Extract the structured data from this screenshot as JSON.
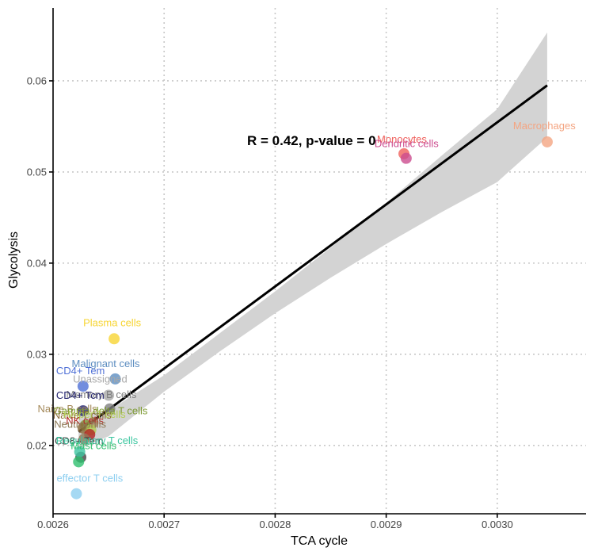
{
  "chart_data": {
    "type": "scatter",
    "xlabel": "TCA cycle",
    "ylabel": "Glycolysis",
    "xlim": [
      0.0026,
      0.00308
    ],
    "ylim": [
      0.0125,
      0.068
    ],
    "x_ticks": [
      0.0026,
      0.0027,
      0.0028,
      0.0029,
      0.003
    ],
    "x_tick_labels": [
      "0.0026",
      "0.0027",
      "0.0028",
      "0.0029",
      "0.0030"
    ],
    "y_ticks": [
      0.02,
      0.03,
      0.04,
      0.05,
      0.06
    ],
    "y_tick_labels": [
      "0.02",
      "0.03",
      "0.04",
      "0.05",
      "0.06"
    ],
    "grid": true,
    "annotation": "R = 0.42, p-value = 0",
    "regression": {
      "x": [
        0.002623,
        0.003045
      ],
      "y": [
        0.0215,
        0.0595
      ]
    },
    "confidence_band": {
      "x": [
        0.002623,
        0.00265,
        0.0027,
        0.00275,
        0.0028,
        0.00285,
        0.0029,
        0.00295,
        0.003,
        0.003045
      ],
      "lower": [
        0.0196,
        0.021,
        0.0259,
        0.0303,
        0.0345,
        0.0384,
        0.0421,
        0.0456,
        0.0489,
        0.0538
      ],
      "upper": [
        0.0234,
        0.0238,
        0.0277,
        0.0323,
        0.0369,
        0.0417,
        0.0466,
        0.0518,
        0.0569,
        0.0653
      ]
    },
    "points": [
      {
        "label": "Macrophages",
        "x": 0.003045,
        "y": 0.0533,
        "color": "#F4A582"
      },
      {
        "label": "Monocytes",
        "x": 0.002916,
        "y": 0.052,
        "color": "#F0615D"
      },
      {
        "label": "Dendritic cells",
        "x": 0.002918,
        "y": 0.0515,
        "color": "#CC4C8F"
      },
      {
        "label": "Plasma cells",
        "x": 0.002655,
        "y": 0.0317,
        "color": "#F7D533"
      },
      {
        "label": "Malignant cells",
        "x": 0.002656,
        "y": 0.0273,
        "color": "#5C8DC0"
      },
      {
        "label": "CD4+ Tem",
        "x": 0.002627,
        "y": 0.0265,
        "color": "#4F70D6"
      },
      {
        "label": "Unassigned",
        "x": 0.00265,
        "y": 0.0255,
        "color": "#A8A8A8"
      },
      {
        "label": "Memory B cells",
        "x": 0.002651,
        "y": 0.024,
        "color": "#7F7F7F"
      },
      {
        "label": "CD4+ Tcm",
        "x": 0.002627,
        "y": 0.0238,
        "color": "#22226E"
      },
      {
        "label": "Naive B cells",
        "x": 0.002636,
        "y": 0.0225,
        "color": "#A58A5B"
      },
      {
        "label": "Gamma delta T cells",
        "x": 0.002629,
        "y": 0.0222,
        "color": "#7D9A32"
      },
      {
        "label": "Naive T cells",
        "x": 0.002627,
        "y": 0.0219,
        "color": "#8B6A3A"
      },
      {
        "label": "Helper T cells",
        "x": 0.002634,
        "y": 0.0217,
        "color": "#B3CC54"
      },
      {
        "label": "NK cells",
        "x": 0.002633,
        "y": 0.0212,
        "color": "#B22222"
      },
      {
        "label": "Neutrophils",
        "x": 0.002628,
        "y": 0.0207,
        "color": "#8E7A57"
      },
      {
        "label": "CD8+ Tem",
        "x": 0.002625,
        "y": 0.0187,
        "color": "#434343"
      },
      {
        "label": "Regulatory T cells",
        "x": 0.002624,
        "y": 0.0193,
        "color": "#3CC6A0"
      },
      {
        "label": "Mast cells",
        "x": 0.002623,
        "y": 0.0182,
        "color": "#2EBF6E"
      },
      {
        "label": "effector T cells",
        "x": 0.002621,
        "y": 0.0147,
        "color": "#8ECFF0"
      }
    ]
  }
}
